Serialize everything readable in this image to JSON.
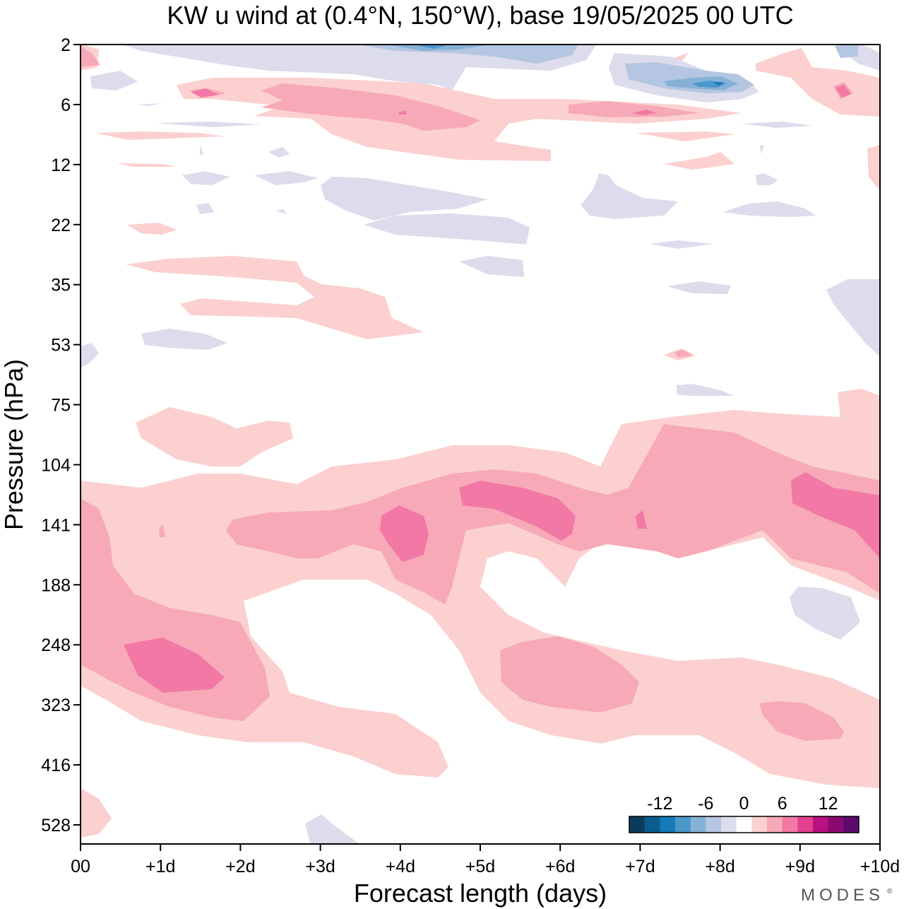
{
  "chart_data": {
    "type": "heatmap",
    "title": "KW u wind at (0.4°N, 150°W),  base 19/05/2025  00 UTC",
    "xlabel": "Forecast length (days)",
    "ylabel": "Pressure (hPa)",
    "x_ticks": [
      "00",
      "+1d",
      "+2d",
      "+3d",
      "+4d",
      "+5d",
      "+6d",
      "+7d",
      "+8d",
      "+9d",
      "+10d"
    ],
    "y_ticks": [
      "2",
      "6",
      "12",
      "22",
      "35",
      "53",
      "75",
      "104",
      "141",
      "188",
      "248",
      "323",
      "416",
      "528"
    ],
    "xlim": [
      0,
      10
    ],
    "y_axis": "pressure, top 2 hPa to bottom ~600 hPa (non-linear)",
    "colorbar": {
      "labels": [
        "-12",
        "-6",
        "0",
        "6",
        "12"
      ],
      "levels": [
        -14,
        -12,
        -10,
        -8,
        -6,
        -4,
        -2,
        2,
        4,
        6,
        8,
        10,
        12,
        14
      ],
      "colors": [
        "#0d3b5e",
        "#0a5c8f",
        "#1679b8",
        "#4a98c9",
        "#86b1d6",
        "#b4c6e1",
        "#dcdcec",
        "#ffffff",
        "#fbd0ce",
        "#f7a9b8",
        "#f278a6",
        "#e5408f",
        "#b8127e",
        "#8a0a72",
        "#5c0a6b"
      ]
    },
    "features": [
      {
        "region": "+4.5d to +6.5d, ~120-160 hPa",
        "u_ms": 6,
        "sign": "westerly maximum"
      },
      {
        "region": "+0.5d to +1.8d, ~250-300 hPa",
        "u_ms": 6,
        "sign": "westerly maximum"
      },
      {
        "region": "+9d to +10d, ~120-170 hPa",
        "u_ms": 6,
        "sign": "westerly maximum"
      },
      {
        "region": "+3.8d to +4.3d, ~130-170 hPa",
        "u_ms": 6,
        "sign": "westerly maximum"
      },
      {
        "region": "+7.3d to +8.2d, ~3-5 hPa",
        "u_ms": -8,
        "sign": "easterly minimum"
      },
      {
        "region": "+4d to +5d, ~2 hPa",
        "u_ms": -6,
        "sign": "easterly minimum"
      }
    ]
  },
  "brand": "MODES",
  "brand_mark": "®"
}
